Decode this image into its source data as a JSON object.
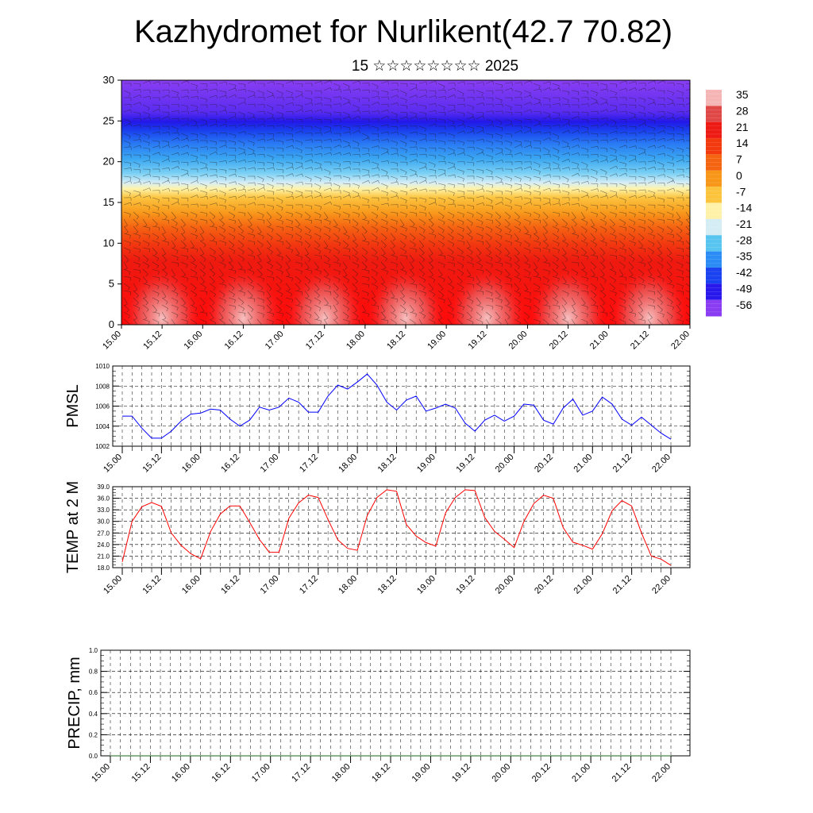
{
  "header": {
    "title": "Kazhydromet for Nurlikent(42.7 70.82)",
    "subtitle": "15 ☆☆☆☆☆☆☆☆ 2025"
  },
  "chart_data": [
    {
      "type": "heatmap",
      "name": "temperature-wind-cross-section",
      "x_ticks": [
        "15.00",
        "15.12",
        "16.00",
        "16.12",
        "17.00",
        "17.12",
        "18.00",
        "18.12",
        "19.00",
        "19.12",
        "20.00",
        "20.12",
        "21.00",
        "21.12",
        "22.00"
      ],
      "y_ticks": [
        0,
        5,
        10,
        15,
        20,
        25,
        30
      ],
      "ylim": [
        0,
        30
      ],
      "colorbar": {
        "labels": [
          "35",
          "28",
          "21",
          "14",
          "7",
          "0",
          "-7",
          "-14",
          "-21",
          "-28",
          "-35",
          "-42",
          "-49",
          "-56"
        ],
        "colors": [
          "#f5b5b5",
          "#e04848",
          "#ee1a14",
          "#f23a0e",
          "#f56410",
          "#f89618",
          "#fbc43c",
          "#fff2a8",
          "#d4ecf4",
          "#58c4f0",
          "#2a8cf4",
          "#1a42f0",
          "#2818ec",
          "#8a3cf2"
        ]
      },
      "overlay": "wind barbs"
    },
    {
      "type": "line",
      "name": "pmsl",
      "ylabel": "PMSL",
      "ylim": [
        1002,
        1010
      ],
      "y_ticks": [
        1002,
        1004,
        1006,
        1008,
        1010
      ],
      "x_ticks": [
        "15.00",
        "15.12",
        "16.00",
        "16.12",
        "17.00",
        "17.12",
        "18.00",
        "18.12",
        "19.00",
        "19.12",
        "20.00",
        "20.12",
        "21.00",
        "21.12",
        "22.00"
      ],
      "x_hours": [
        0,
        3,
        6,
        9,
        12,
        15,
        18,
        21,
        24,
        27,
        30,
        33,
        36,
        39,
        42,
        45,
        48,
        51,
        54,
        57,
        60,
        63,
        66,
        69,
        72,
        75,
        78,
        81,
        84,
        87,
        90,
        93,
        96,
        99,
        102,
        105,
        108,
        111,
        114,
        117,
        120,
        123,
        126,
        129,
        132,
        135,
        138,
        141,
        144,
        147,
        150,
        153,
        156,
        159,
        162,
        165,
        168
      ],
      "values": [
        1005.0,
        1005.0,
        1003.8,
        1002.8,
        1002.8,
        1003.5,
        1004.5,
        1005.2,
        1005.3,
        1005.7,
        1005.6,
        1004.7,
        1004.0,
        1004.6,
        1005.9,
        1005.6,
        1005.9,
        1006.8,
        1006.4,
        1005.4,
        1005.4,
        1007.0,
        1008.1,
        1007.7,
        1008.4,
        1009.2,
        1008.1,
        1006.4,
        1005.6,
        1006.6,
        1007.0,
        1005.5,
        1005.8,
        1006.2,
        1005.8,
        1004.3,
        1003.5,
        1004.6,
        1005.1,
        1004.5,
        1005.0,
        1006.2,
        1006.1,
        1004.6,
        1004.2,
        1005.8,
        1006.7,
        1005.1,
        1005.5,
        1006.9,
        1006.2,
        1004.7,
        1004.1,
        1004.9,
        1004.1,
        1003.3,
        1002.7
      ],
      "line_color": "#0000ff"
    },
    {
      "type": "line",
      "name": "temp-2m",
      "ylabel": "TEMP at 2 M",
      "ylim": [
        18,
        39
      ],
      "y_ticks": [
        "18.0",
        "21.0",
        "24.0",
        "27.0",
        "30.0",
        "33.0",
        "36.0",
        "39.0"
      ],
      "x_ticks": [
        "15.00",
        "15.12",
        "16.00",
        "16.12",
        "17.00",
        "17.12",
        "18.00",
        "18.12",
        "19.00",
        "19.12",
        "20.00",
        "20.12",
        "21.00",
        "21.12",
        "22.00"
      ],
      "values": [
        19.5,
        30.0,
        33.8,
        34.9,
        33.9,
        27.0,
        23.8,
        21.6,
        20.3,
        27.3,
        31.9,
        34.0,
        34.0,
        29.8,
        25.3,
        22.0,
        22.0,
        30.8,
        34.8,
        36.8,
        36.2,
        30.5,
        25.2,
        23.0,
        22.5,
        31.5,
        36.2,
        38.2,
        37.8,
        29.2,
        26.2,
        24.5,
        23.6,
        32.2,
        36.2,
        38.2,
        38.0,
        31.0,
        27.4,
        25.4,
        23.2,
        30.0,
        34.6,
        36.8,
        36.0,
        28.4,
        24.6,
        23.8,
        22.8,
        26.8,
        32.8,
        35.4,
        34.0,
        27.0,
        21.0,
        20.2,
        18.6
      ],
      "line_color": "#ff0000"
    },
    {
      "type": "line",
      "name": "precip",
      "ylabel": "PRECIP, mm",
      "ylim": [
        0.0,
        1.0
      ],
      "y_ticks": [
        "0.0",
        "0.2",
        "0.4",
        "0.6",
        "0.8",
        "1.0"
      ],
      "x_ticks": [
        "15.00",
        "15.12",
        "16.00",
        "16.12",
        "17.00",
        "17.12",
        "18.00",
        "18.12",
        "19.00",
        "19.12",
        "20.00",
        "20.12",
        "21.00",
        "21.12",
        "22.00"
      ],
      "values": [
        0,
        0,
        0,
        0,
        0,
        0,
        0,
        0,
        0,
        0,
        0,
        0,
        0,
        0,
        0,
        0,
        0,
        0,
        0,
        0,
        0,
        0,
        0,
        0,
        0,
        0,
        0,
        0,
        0,
        0,
        0,
        0,
        0,
        0,
        0,
        0,
        0,
        0,
        0,
        0,
        0,
        0,
        0,
        0,
        0,
        0,
        0,
        0,
        0,
        0,
        0,
        0,
        0,
        0,
        0,
        0,
        0
      ],
      "line_color": "#1a6a1a"
    }
  ]
}
